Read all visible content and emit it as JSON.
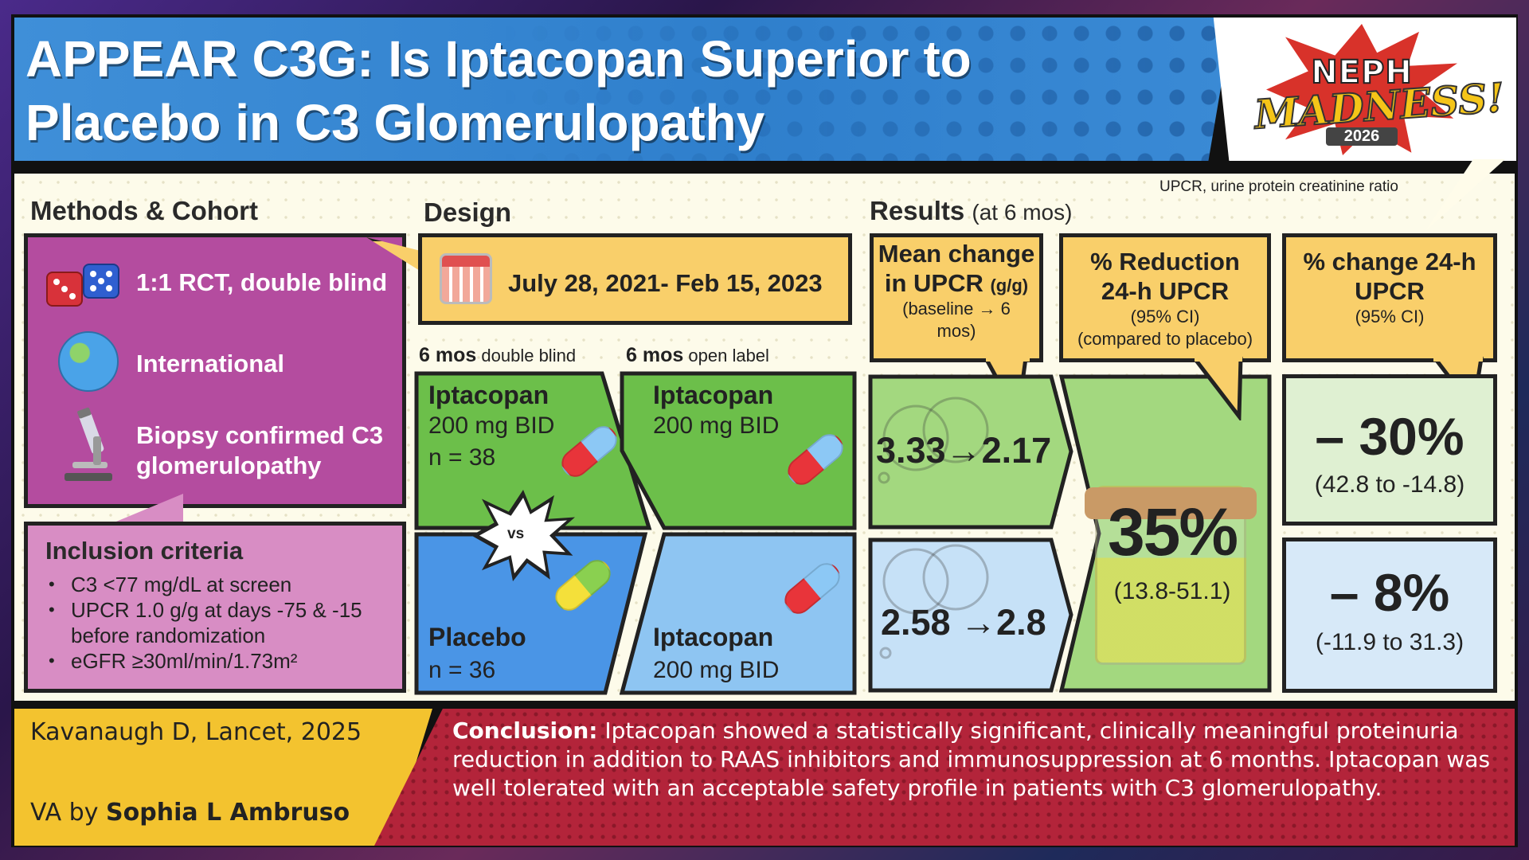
{
  "header": {
    "title_line1": "APPEAR C3G: Is Iptacopan Superior to",
    "title_line2": "Placebo in C3 Glomerulopathy"
  },
  "logo": {
    "line1": "NEPH",
    "line2": "MADNESS!",
    "year": "2026"
  },
  "footnote": "UPCR, urine protein creatinine ratio",
  "methods": {
    "heading": "Methods & Cohort",
    "items": [
      {
        "icon": "dice-icon",
        "label": "1:1 RCT, double blind"
      },
      {
        "icon": "globe-icon",
        "label": "International"
      },
      {
        "icon": "microscope-icon",
        "label_line1": "Biopsy confirmed C3",
        "label_line2": "glomerulopathy"
      }
    ]
  },
  "inclusion": {
    "title": "Inclusion criteria",
    "items": [
      "C3 <77 mg/dL at screen",
      "UPCR 1.0 g/g at days -75 & -15",
      "before randomization",
      "eGFR ≥30ml/min/1.73m²"
    ]
  },
  "design": {
    "heading": "Design",
    "dates": "July 28, 2021- Feb 15, 2023",
    "phase1_bold": "6 mos",
    "phase1_rest": "double blind",
    "phase2_bold": "6 mos",
    "phase2_rest": "open label",
    "vs": "vs",
    "arms": {
      "db_iptacopan": {
        "name": "Iptacopan",
        "dose": "200 mg BID",
        "n": "n = 38"
      },
      "db_placebo": {
        "name": "Placebo",
        "n": "n = 36"
      },
      "ol_iptacopan_top": {
        "name": "Iptacopan",
        "dose": "200 mg BID"
      },
      "ol_iptacopan_bottom": {
        "name": "Iptacopan",
        "dose": "200 mg BID"
      }
    }
  },
  "results": {
    "heading": "Results",
    "heading_sub": "(at 6 mos)",
    "col1": {
      "title_line1": "Mean change",
      "title_line2": "in UPCR",
      "unit": "(g/g)",
      "sub_line1": "(baseline →   6",
      "sub_line2": "mos)",
      "iptacopan": "3.33→2.17",
      "placebo": "2.58 →2.8"
    },
    "col2": {
      "title_line1": "% Reduction",
      "title_line2": "24-h UPCR",
      "sub_line1": "(95% CI)",
      "sub_line2": "(compared to placebo)",
      "value": "35%",
      "ci": "(13.8-51.1)"
    },
    "col3": {
      "title_line1": "% change 24-h",
      "title_line2": "UPCR",
      "sub_line1": "(95% CI)",
      "iptacopan_value": "– 30%",
      "iptacopan_ci": "(42.8 to -14.8)",
      "placebo_value": "– 8%",
      "placebo_ci": "(-11.9 to 31.3)"
    }
  },
  "footer": {
    "citation": "Kavanaugh D, Lancet, 2025",
    "va_prefix": "VA by",
    "va_name": "Sophia L Ambruso",
    "conclusion_label": "Conclusion:",
    "conclusion_text": " Iptacopan showed a statistically significant, clinically meaningful proteinuria reduction in addition to RAAS inhibitors and immunosuppression at 6 months. Iptacopan was well tolerated with an acceptable safety profile in patients with C3 glomerulopathy."
  },
  "colors": {
    "header_blue": "#3f8fd8",
    "methods_magenta": "#b44c9f",
    "inclusion_pink": "#d88dc4",
    "highlight_yellow": "#f9cf6a",
    "iptacopan_green": "#6cbf4a",
    "placebo_blue": "#4a95e6",
    "conclusion_red": "#b3243a"
  }
}
